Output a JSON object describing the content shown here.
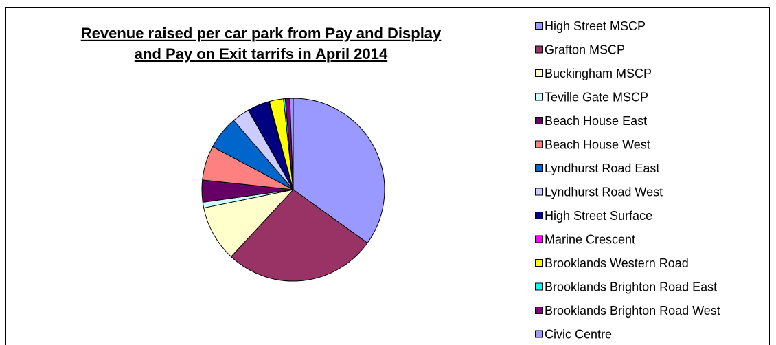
{
  "chart_data": {
    "type": "pie",
    "title": [
      "Revenue raised per car park from Pay and Display",
      "and Pay on Exit tarrifs in April 2014"
    ],
    "categories": [
      "High Street MSCP",
      "Grafton MSCP",
      "Buckingham MSCP",
      "Teville Gate MSCP",
      "Beach House East",
      "Beach House West",
      "Lyndhurst Road East",
      "Lyndhurst Road West",
      "High Street Surface",
      "Marine Crescent",
      "Brooklands Western Road",
      "Brooklands Brighton Road East",
      "Brooklands Brighton Road West",
      "Civic Centre"
    ],
    "values": [
      34.9,
      27,
      9.9,
      1,
      3.9,
      6.1,
      5.9,
      3.1,
      3.9,
      0.1,
      2.5,
      0.3,
      0.8,
      0.6
    ],
    "colors": [
      "#9999ff",
      "#993366",
      "#ffffcc",
      "#ccffff",
      "#660066",
      "#ff8080",
      "#0066cc",
      "#ccccff",
      "#000080",
      "#ff00ff",
      "#ffff00",
      "#00ffff",
      "#800080",
      "#9999ff"
    ],
    "legend": "right"
  }
}
